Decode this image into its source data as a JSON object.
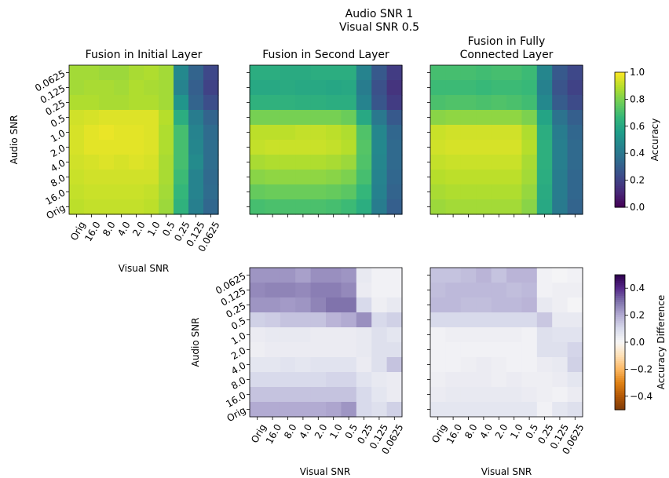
{
  "figure": {
    "title_line1": "Audio SNR 1",
    "title_line2": "Visual SNR 0.5"
  },
  "colors": {
    "viridis": [
      "#440154",
      "#482878",
      "#3e4989",
      "#31688e",
      "#26828e",
      "#1f9e89",
      "#35b779",
      "#6ece58",
      "#b5de2b",
      "#fde725"
    ],
    "puor": [
      "#7f3b08",
      "#b35806",
      "#e08214",
      "#fdb863",
      "#fee0b6",
      "#f7f7f7",
      "#d8daeb",
      "#b2abd2",
      "#8073ac",
      "#542788",
      "#2d004b"
    ]
  },
  "chart_data": [
    {
      "type": "heatmap",
      "title": "Fusion in Initial Layer",
      "xlabel": "Visual SNR",
      "ylabel": "Audio SNR",
      "x": [
        "Orig",
        "16.0",
        "8.0",
        "4.0",
        "2.0",
        "1.0",
        "0.5",
        "0.25",
        "0.125",
        "0.0625"
      ],
      "y": [
        "0.0625",
        "0.125",
        "0.25",
        "0.5",
        "1.0",
        "2.0",
        "4.0",
        "8.0",
        "16.0",
        "Orig"
      ],
      "colormap": "viridis",
      "vmin": 0.0,
      "vmax": 1.0,
      "values": [
        [
          0.86,
          0.86,
          0.85,
          0.85,
          0.87,
          0.88,
          0.86,
          0.47,
          0.32,
          0.22
        ],
        [
          0.86,
          0.87,
          0.87,
          0.86,
          0.88,
          0.87,
          0.86,
          0.45,
          0.3,
          0.2
        ],
        [
          0.88,
          0.88,
          0.87,
          0.87,
          0.88,
          0.88,
          0.86,
          0.52,
          0.32,
          0.24
        ],
        [
          0.93,
          0.94,
          0.95,
          0.95,
          0.95,
          0.95,
          0.89,
          0.62,
          0.42,
          0.32
        ],
        [
          0.94,
          0.96,
          0.97,
          0.96,
          0.96,
          0.95,
          0.88,
          0.7,
          0.45,
          0.35
        ],
        [
          0.94,
          0.96,
          0.96,
          0.96,
          0.96,
          0.95,
          0.88,
          0.7,
          0.46,
          0.36
        ],
        [
          0.93,
          0.94,
          0.95,
          0.94,
          0.95,
          0.94,
          0.87,
          0.7,
          0.48,
          0.36
        ],
        [
          0.92,
          0.93,
          0.93,
          0.93,
          0.93,
          0.93,
          0.87,
          0.68,
          0.45,
          0.34
        ],
        [
          0.91,
          0.92,
          0.92,
          0.92,
          0.92,
          0.91,
          0.86,
          0.66,
          0.45,
          0.35
        ],
        [
          0.9,
          0.91,
          0.91,
          0.91,
          0.91,
          0.9,
          0.85,
          0.64,
          0.43,
          0.33
        ]
      ]
    },
    {
      "type": "heatmap",
      "title": "Fusion in Second Layer",
      "x": [
        "Orig",
        "16.0",
        "8.0",
        "4.0",
        "2.0",
        "1.0",
        "0.5",
        "0.25",
        "0.125",
        "0.0625"
      ],
      "y": [
        "0.0625",
        "0.125",
        "0.25",
        "0.5",
        "1.0",
        "2.0",
        "4.0",
        "8.0",
        "16.0",
        "Orig"
      ],
      "colormap": "viridis",
      "vmin": 0.0,
      "vmax": 1.0,
      "values": [
        [
          0.62,
          0.62,
          0.61,
          0.61,
          0.62,
          0.62,
          0.62,
          0.45,
          0.28,
          0.18
        ],
        [
          0.6,
          0.6,
          0.61,
          0.6,
          0.6,
          0.59,
          0.6,
          0.42,
          0.25,
          0.15
        ],
        [
          0.64,
          0.64,
          0.64,
          0.63,
          0.63,
          0.62,
          0.62,
          0.45,
          0.27,
          0.18
        ],
        [
          0.79,
          0.79,
          0.79,
          0.79,
          0.79,
          0.79,
          0.77,
          0.6,
          0.4,
          0.28
        ],
        [
          0.9,
          0.9,
          0.9,
          0.91,
          0.91,
          0.9,
          0.88,
          0.72,
          0.46,
          0.33
        ],
        [
          0.91,
          0.92,
          0.92,
          0.92,
          0.92,
          0.91,
          0.89,
          0.73,
          0.47,
          0.34
        ],
        [
          0.87,
          0.88,
          0.88,
          0.88,
          0.88,
          0.87,
          0.85,
          0.72,
          0.46,
          0.34
        ],
        [
          0.82,
          0.83,
          0.83,
          0.83,
          0.83,
          0.82,
          0.8,
          0.7,
          0.45,
          0.33
        ],
        [
          0.76,
          0.77,
          0.77,
          0.77,
          0.77,
          0.76,
          0.74,
          0.66,
          0.44,
          0.32
        ],
        [
          0.7,
          0.71,
          0.71,
          0.71,
          0.71,
          0.7,
          0.68,
          0.62,
          0.42,
          0.3
        ]
      ]
    },
    {
      "type": "heatmap",
      "title": "Fusion in Fully Connected Layer",
      "x": [
        "Orig",
        "16.0",
        "8.0",
        "4.0",
        "2.0",
        "1.0",
        "0.5",
        "0.25",
        "0.125",
        "0.0625"
      ],
      "y": [
        "0.0625",
        "0.125",
        "0.25",
        "0.5",
        "1.0",
        "2.0",
        "4.0",
        "8.0",
        "16.0",
        "Orig"
      ],
      "colormap": "viridis",
      "vmin": 0.0,
      "vmax": 1.0,
      "values": [
        [
          0.7,
          0.7,
          0.7,
          0.69,
          0.7,
          0.7,
          0.68,
          0.46,
          0.28,
          0.22
        ],
        [
          0.68,
          0.68,
          0.68,
          0.67,
          0.68,
          0.68,
          0.67,
          0.44,
          0.26,
          0.2
        ],
        [
          0.71,
          0.72,
          0.72,
          0.71,
          0.72,
          0.71,
          0.69,
          0.47,
          0.29,
          0.23
        ],
        [
          0.82,
          0.83,
          0.83,
          0.83,
          0.83,
          0.83,
          0.8,
          0.58,
          0.38,
          0.3
        ],
        [
          0.92,
          0.93,
          0.93,
          0.93,
          0.93,
          0.93,
          0.88,
          0.62,
          0.42,
          0.33
        ],
        [
          0.93,
          0.94,
          0.94,
          0.94,
          0.94,
          0.94,
          0.89,
          0.63,
          0.43,
          0.34
        ],
        [
          0.91,
          0.92,
          0.92,
          0.92,
          0.92,
          0.92,
          0.87,
          0.63,
          0.43,
          0.34
        ],
        [
          0.89,
          0.9,
          0.9,
          0.9,
          0.9,
          0.9,
          0.86,
          0.62,
          0.42,
          0.33
        ],
        [
          0.87,
          0.88,
          0.88,
          0.88,
          0.88,
          0.88,
          0.84,
          0.61,
          0.42,
          0.33
        ],
        [
          0.85,
          0.86,
          0.86,
          0.86,
          0.86,
          0.86,
          0.82,
          0.6,
          0.41,
          0.32
        ]
      ]
    },
    {
      "type": "heatmap",
      "panel": "difference-second-layer",
      "xlabel": "Visual SNR",
      "ylabel": "Audio SNR",
      "x": [
        "Orig",
        "16.0",
        "8.0",
        "4.0",
        "2.0",
        "1.0",
        "0.5",
        "0.25",
        "0.125",
        "0.0625"
      ],
      "y": [
        "0.0625",
        "0.125",
        "0.25",
        "0.5",
        "1.0",
        "2.0",
        "4.0",
        "8.0",
        "16.0",
        "Orig"
      ],
      "colormap": "PuOr",
      "vmin": -0.5,
      "vmax": 0.5,
      "values": [
        [
          0.24,
          0.24,
          0.24,
          0.22,
          0.25,
          0.25,
          0.24,
          0.05,
          0.02,
          0.02
        ],
        [
          0.26,
          0.27,
          0.27,
          0.26,
          0.28,
          0.28,
          0.26,
          0.04,
          0.02,
          0.02
        ],
        [
          0.24,
          0.24,
          0.23,
          0.24,
          0.27,
          0.3,
          0.3,
          0.1,
          0.03,
          0.05
        ],
        [
          0.12,
          0.13,
          0.15,
          0.15,
          0.15,
          0.18,
          0.2,
          0.25,
          0.1,
          0.12
        ],
        [
          0.04,
          0.05,
          0.05,
          0.05,
          0.04,
          0.04,
          0.04,
          0.05,
          0.08,
          0.06
        ],
        [
          0.03,
          0.04,
          0.04,
          0.04,
          0.04,
          0.04,
          0.04,
          0.05,
          0.08,
          0.08
        ],
        [
          0.06,
          0.06,
          0.07,
          0.06,
          0.07,
          0.07,
          0.07,
          0.04,
          0.08,
          0.15
        ],
        [
          0.1,
          0.1,
          0.1,
          0.1,
          0.1,
          0.11,
          0.11,
          0.07,
          0.05,
          0.04
        ],
        [
          0.15,
          0.15,
          0.15,
          0.15,
          0.15,
          0.15,
          0.15,
          0.1,
          0.06,
          0.04
        ],
        [
          0.2,
          0.2,
          0.2,
          0.2,
          0.2,
          0.21,
          0.24,
          0.1,
          0.08,
          0.12
        ]
      ]
    },
    {
      "type": "heatmap",
      "panel": "difference-fully-connected",
      "xlabel": "Visual SNR",
      "x": [
        "Orig",
        "16.0",
        "8.0",
        "4.0",
        "2.0",
        "1.0",
        "0.5",
        "0.25",
        "0.125",
        "0.0625"
      ],
      "y": [
        "0.0625",
        "0.125",
        "0.25",
        "0.5",
        "1.0",
        "2.0",
        "4.0",
        "8.0",
        "16.0",
        "Orig"
      ],
      "colormap": "PuOr",
      "vmin": -0.5,
      "vmax": 0.5,
      "values": [
        [
          0.15,
          0.15,
          0.16,
          0.18,
          0.15,
          0.18,
          0.18,
          0.02,
          0.01,
          0.02
        ],
        [
          0.16,
          0.17,
          0.17,
          0.17,
          0.17,
          0.16,
          0.17,
          0.02,
          0.03,
          0.03
        ],
        [
          0.17,
          0.17,
          0.16,
          0.16,
          0.17,
          0.17,
          0.18,
          0.05,
          0.03,
          0.01
        ],
        [
          0.1,
          0.1,
          0.1,
          0.1,
          0.1,
          0.1,
          0.1,
          0.14,
          0.05,
          0.05
        ],
        [
          0.02,
          0.03,
          0.03,
          0.03,
          0.03,
          0.03,
          0.02,
          0.08,
          0.07,
          0.07
        ],
        [
          0.02,
          0.02,
          0.02,
          0.02,
          0.02,
          0.02,
          0.02,
          0.08,
          0.08,
          0.11
        ],
        [
          0.02,
          0.02,
          0.03,
          0.04,
          0.03,
          0.02,
          0.02,
          0.04,
          0.05,
          0.12
        ],
        [
          0.03,
          0.04,
          0.04,
          0.04,
          0.03,
          0.04,
          0.03,
          0.03,
          0.04,
          0.06
        ],
        [
          0.04,
          0.05,
          0.05,
          0.05,
          0.05,
          0.05,
          0.04,
          0.03,
          0.02,
          0.04
        ],
        [
          0.06,
          0.06,
          0.06,
          0.06,
          0.06,
          0.06,
          0.06,
          0.02,
          0.06,
          0.08
        ]
      ]
    }
  ],
  "colorbars": [
    {
      "label": "Accuracy",
      "colormap": "viridis",
      "vmin": 0.0,
      "vmax": 1.0,
      "ticks": [
        0.0,
        0.2,
        0.4,
        0.6,
        0.8,
        1.0
      ],
      "tick_labels": [
        "0.0",
        "0.2",
        "0.4",
        "0.6",
        "0.8",
        "1.0"
      ]
    },
    {
      "label": "Accuracy Difference",
      "colormap": "PuOr",
      "vmin": -0.5,
      "vmax": 0.5,
      "ticks": [
        -0.4,
        -0.2,
        0.0,
        0.2,
        0.4
      ],
      "tick_labels": [
        "−0.4",
        "−0.2",
        "0.0",
        "0.2",
        "0.4"
      ]
    }
  ]
}
